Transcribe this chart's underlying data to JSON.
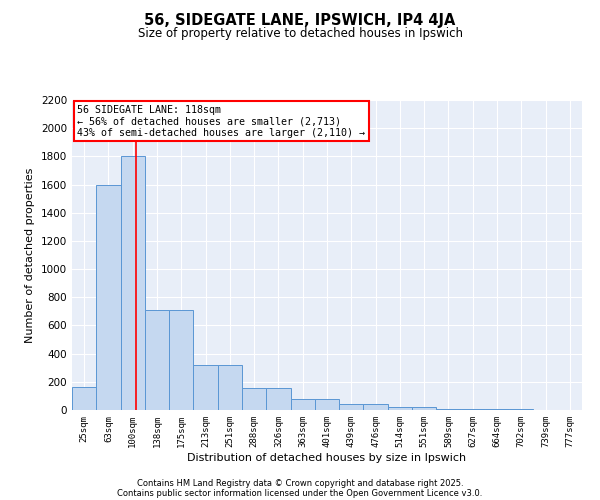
{
  "title": "56, SIDEGATE LANE, IPSWICH, IP4 4JA",
  "subtitle": "Size of property relative to detached houses in Ipswich",
  "xlabel": "Distribution of detached houses by size in Ipswich",
  "ylabel": "Number of detached properties",
  "bar_labels": [
    "25sqm",
    "63sqm",
    "100sqm",
    "138sqm",
    "175sqm",
    "213sqm",
    "251sqm",
    "288sqm",
    "326sqm",
    "363sqm",
    "401sqm",
    "439sqm",
    "476sqm",
    "514sqm",
    "551sqm",
    "589sqm",
    "627sqm",
    "664sqm",
    "702sqm",
    "739sqm",
    "777sqm"
  ],
  "bar_values": [
    160,
    1600,
    1800,
    710,
    710,
    320,
    320,
    155,
    155,
    75,
    75,
    40,
    40,
    20,
    20,
    10,
    10,
    5,
    5,
    2,
    2
  ],
  "bar_color": "#c5d8f0",
  "bar_edge_color": "#5a96d4",
  "vline_color": "red",
  "annotation_text": "56 SIDEGATE LANE: 118sqm\n← 56% of detached houses are smaller (2,713)\n43% of semi-detached houses are larger (2,110) →",
  "annotation_box_color": "white",
  "annotation_box_edge": "red",
  "ylim": [
    0,
    2200
  ],
  "yticks": [
    0,
    200,
    400,
    600,
    800,
    1000,
    1200,
    1400,
    1600,
    1800,
    2000,
    2200
  ],
  "bg_color": "#e8eef8",
  "footer_line1": "Contains HM Land Registry data © Crown copyright and database right 2025.",
  "footer_line2": "Contains public sector information licensed under the Open Government Licence v3.0."
}
